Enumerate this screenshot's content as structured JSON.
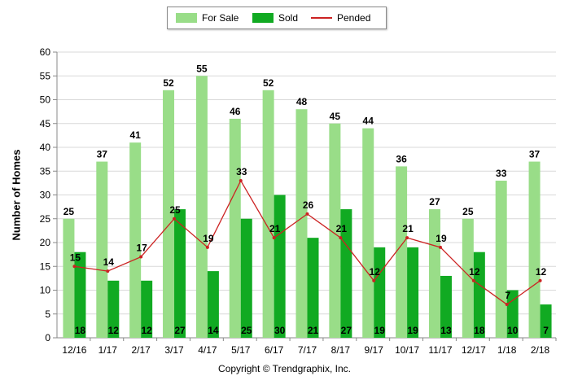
{
  "chart_data": {
    "type": "bar",
    "categories": [
      "12/16",
      "1/17",
      "2/17",
      "3/17",
      "4/17",
      "5/17",
      "6/17",
      "7/17",
      "8/17",
      "9/17",
      "10/17",
      "11/17",
      "12/17",
      "1/18",
      "2/18"
    ],
    "series": [
      {
        "name": "For Sale",
        "kind": "bar",
        "color": "#99dd88",
        "values": [
          25,
          37,
          41,
          52,
          55,
          46,
          52,
          48,
          45,
          44,
          36,
          27,
          25,
          33,
          37
        ]
      },
      {
        "name": "Sold",
        "kind": "bar",
        "color": "#11aa22",
        "values": [
          18,
          12,
          12,
          27,
          14,
          25,
          30,
          21,
          27,
          19,
          19,
          13,
          18,
          10,
          7
        ]
      },
      {
        "name": "Pended",
        "kind": "line",
        "color": "#cc2222",
        "values": [
          15,
          14,
          17,
          25,
          19,
          33,
          21,
          26,
          21,
          12,
          21,
          19,
          12,
          7,
          12
        ]
      }
    ],
    "ylabel": "Number of Homes",
    "ylim": [
      0,
      60
    ],
    "yticks": [
      0,
      5,
      10,
      15,
      20,
      25,
      30,
      35,
      40,
      45,
      50,
      55,
      60
    ],
    "grid": true,
    "legend": "top-center"
  },
  "footer": {
    "copyright": "Copyright © Trendgraphix, Inc."
  }
}
